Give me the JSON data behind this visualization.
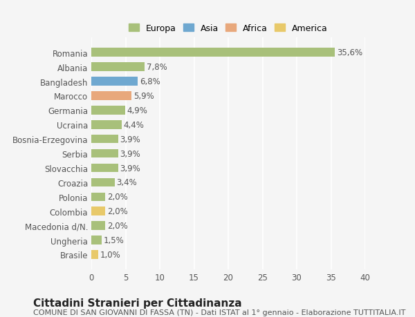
{
  "countries": [
    "Romania",
    "Albania",
    "Bangladesh",
    "Marocco",
    "Germania",
    "Ucraina",
    "Bosnia-Erzegovina",
    "Serbia",
    "Slovacchia",
    "Croazia",
    "Polonia",
    "Colombia",
    "Macedonia d/N.",
    "Ungheria",
    "Brasile"
  ],
  "values": [
    35.6,
    7.8,
    6.8,
    5.9,
    4.9,
    4.4,
    3.9,
    3.9,
    3.9,
    3.4,
    2.0,
    2.0,
    2.0,
    1.5,
    1.0
  ],
  "labels": [
    "35,6%",
    "7,8%",
    "6,8%",
    "5,9%",
    "4,9%",
    "4,4%",
    "3,9%",
    "3,9%",
    "3,9%",
    "3,4%",
    "2,0%",
    "2,0%",
    "2,0%",
    "1,5%",
    "1,0%"
  ],
  "colors": [
    "#a8c07a",
    "#a8c07a",
    "#6fa8d0",
    "#e8a87c",
    "#a8c07a",
    "#a8c07a",
    "#a8c07a",
    "#a8c07a",
    "#a8c07a",
    "#a8c07a",
    "#a8c07a",
    "#e8c96a",
    "#a8c07a",
    "#a8c07a",
    "#e8c96a"
  ],
  "legend_labels": [
    "Europa",
    "Asia",
    "Africa",
    "America"
  ],
  "legend_colors": [
    "#a8c07a",
    "#6fa8d0",
    "#e8a87c",
    "#e8c96a"
  ],
  "title": "Cittadini Stranieri per Cittadinanza",
  "subtitle": "COMUNE DI SAN GIOVANNI DI FASSA (TN) - Dati ISTAT al 1° gennaio - Elaborazione TUTTITALIA.IT",
  "xlim": [
    0,
    40
  ],
  "xticks": [
    0,
    5,
    10,
    15,
    20,
    25,
    30,
    35,
    40
  ],
  "background_color": "#f5f5f5",
  "grid_color": "#ffffff",
  "bar_height": 0.6,
  "title_fontsize": 11,
  "subtitle_fontsize": 8,
  "tick_fontsize": 8.5,
  "label_fontsize": 8.5,
  "legend_fontsize": 9
}
